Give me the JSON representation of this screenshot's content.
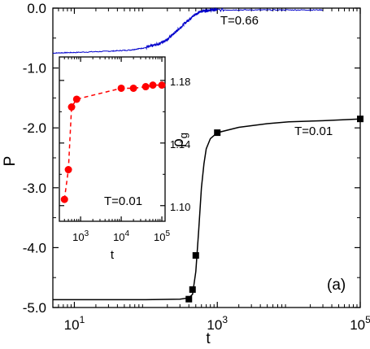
{
  "chart_data": [
    {
      "type": "line",
      "panel_label": "(a)",
      "xlabel": "t",
      "ylabel": "P",
      "xscale": "log",
      "xlim": [
        5,
        100000
      ],
      "ylim": [
        -5.0,
        0.0
      ],
      "x_ticks": [
        {
          "value": 10,
          "label": "10",
          "exp": "1"
        },
        {
          "value": 1000,
          "label": "10",
          "exp": "3"
        },
        {
          "value": 100000,
          "label": "10",
          "exp": "5"
        }
      ],
      "y_ticks": [
        {
          "value": 0.0,
          "label": "0.0"
        },
        {
          "value": -1.0,
          "label": "-1.0"
        },
        {
          "value": -2.0,
          "label": "-2.0"
        },
        {
          "value": -3.0,
          "label": "-3.0"
        },
        {
          "value": -4.0,
          "label": "-4.0"
        },
        {
          "value": -5.0,
          "label": "-5.0"
        }
      ],
      "series": [
        {
          "color": "#0000cc",
          "style": "noisy solid line",
          "x": [
            5,
            10,
            30,
            60,
            100,
            150,
            200,
            250,
            300,
            400,
            500,
            600,
            800,
            1000,
            3000,
            10000,
            30000
          ],
          "y": [
            -0.75,
            -0.74,
            -0.72,
            -0.7,
            -0.66,
            -0.6,
            -0.52,
            -0.42,
            -0.33,
            -0.19,
            -0.1,
            -0.05,
            -0.03,
            -0.03,
            -0.03,
            -0.03,
            -0.03
          ]
        },
        {
          "color": "#000000",
          "style": "solid line",
          "x": [
            5,
            10,
            30,
            100,
            300,
            400,
            450,
            500,
            550,
            600,
            650,
            700,
            800,
            1000,
            2000,
            5000,
            10000,
            30000,
            100000
          ],
          "y": [
            -4.87,
            -4.87,
            -4.87,
            -4.87,
            -4.86,
            -4.84,
            -4.78,
            -4.4,
            -3.7,
            -3.0,
            -2.6,
            -2.35,
            -2.18,
            -2.08,
            -1.99,
            -1.93,
            -1.9,
            -1.88,
            -1.85
          ]
        },
        {
          "color": "#000000",
          "style": "square markers",
          "x": [
            400,
            450,
            500,
            1000,
            100000
          ],
          "y": [
            -4.86,
            -4.7,
            -4.13,
            -2.08,
            -1.85
          ]
        }
      ],
      "annotations": [
        {
          "text": "T=0.66",
          "x": 1100,
          "y": -0.27
        },
        {
          "text": "T=0.01",
          "x": 12000,
          "y": -2.12
        }
      ]
    },
    {
      "type": "scatter",
      "subtitle": "T=0.01",
      "xlabel": "t",
      "ylabel_base": "ρ",
      "ylabel_sub": "g",
      "xscale": "log",
      "xlim": [
        300,
        120000
      ],
      "ylim": [
        1.09,
        1.195
      ],
      "x_ticks": [
        {
          "value": 1000,
          "label": "10",
          "exp": "3"
        },
        {
          "value": 10000,
          "label": "10",
          "exp": "4"
        },
        {
          "value": 100000,
          "label": "10",
          "exp": "5"
        }
      ],
      "y_ticks": [
        {
          "value": 1.1,
          "label": "1.10"
        },
        {
          "value": 1.14,
          "label": "1.14"
        },
        {
          "value": 1.18,
          "label": "1.18"
        }
      ],
      "series": [
        {
          "color": "#ff0000",
          "style": "dashed line with circle markers",
          "x": [
            400,
            500,
            600,
            800,
            10000,
            20000,
            40000,
            60000,
            100000
          ],
          "y": [
            1.104,
            1.123,
            1.163,
            1.168,
            1.175,
            1.175,
            1.176,
            1.177,
            1.177
          ]
        }
      ]
    }
  ]
}
